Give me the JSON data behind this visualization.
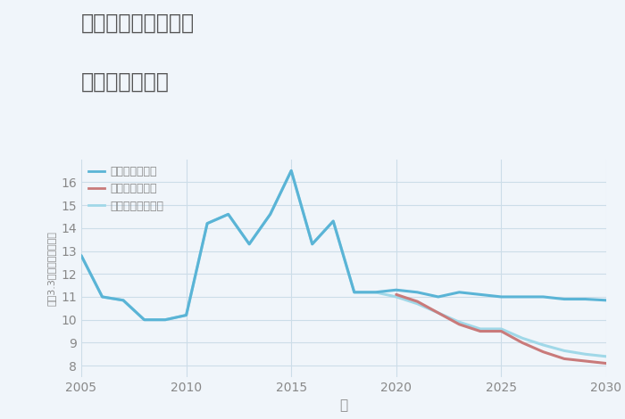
{
  "title_line1": "福岡県筑後市前津の",
  "title_line2": "土地の価格推移",
  "xlabel": "年",
  "ylabel": "平（3.3㎡）単価（万円）",
  "xlim": [
    2005,
    2030
  ],
  "ylim": [
    7.5,
    17.0
  ],
  "yticks": [
    8,
    9,
    10,
    11,
    12,
    13,
    14,
    15,
    16
  ],
  "xticks": [
    2005,
    2010,
    2015,
    2020,
    2025,
    2030
  ],
  "good_scenario": {
    "label": "グッドシナリオ",
    "color": "#5ab4d6",
    "x": [
      2005,
      2006,
      2007,
      2008,
      2009,
      2010,
      2011,
      2012,
      2013,
      2014,
      2015,
      2016,
      2017,
      2018,
      2019,
      2020,
      2021,
      2022,
      2023,
      2024,
      2025,
      2026,
      2027,
      2028,
      2029,
      2030
    ],
    "y": [
      12.8,
      11.0,
      10.85,
      10.0,
      10.0,
      10.2,
      14.2,
      14.6,
      13.3,
      14.6,
      16.5,
      13.3,
      14.3,
      11.2,
      11.2,
      11.3,
      11.2,
      11.0,
      11.2,
      11.1,
      11.0,
      11.0,
      11.0,
      10.9,
      10.9,
      10.85
    ]
  },
  "bad_scenario": {
    "label": "バッドシナリオ",
    "color": "#c97a7a",
    "x": [
      2020,
      2021,
      2022,
      2023,
      2024,
      2025,
      2026,
      2027,
      2028,
      2029,
      2030
    ],
    "y": [
      11.1,
      10.8,
      10.3,
      9.8,
      9.5,
      9.5,
      9.0,
      8.6,
      8.3,
      8.2,
      8.1
    ]
  },
  "normal_scenario": {
    "label": "ノーマルシナリオ",
    "color": "#a0d8e8",
    "x": [
      2005,
      2006,
      2007,
      2008,
      2009,
      2010,
      2011,
      2012,
      2013,
      2014,
      2015,
      2016,
      2017,
      2018,
      2019,
      2020,
      2021,
      2022,
      2023,
      2024,
      2025,
      2026,
      2027,
      2028,
      2029,
      2030
    ],
    "y": [
      12.8,
      11.0,
      10.85,
      10.0,
      10.0,
      10.2,
      14.2,
      14.6,
      13.3,
      14.6,
      16.5,
      13.3,
      14.3,
      11.2,
      11.2,
      11.0,
      10.7,
      10.3,
      9.9,
      9.6,
      9.6,
      9.2,
      8.9,
      8.65,
      8.5,
      8.4
    ]
  },
  "background_color": "#f0f5fa",
  "grid_color": "#ccdde8",
  "title_color": "#555555",
  "axis_color": "#888888",
  "linewidth": 2.2
}
